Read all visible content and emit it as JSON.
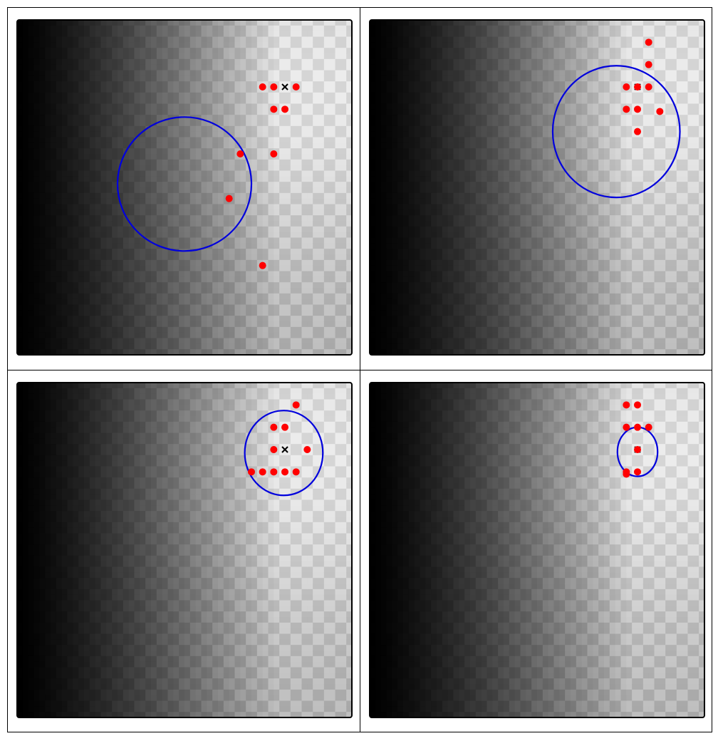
{
  "chart_data": [
    {
      "type": "scatter",
      "title": "",
      "xlim": [
        0,
        30
      ],
      "ylim": [
        0,
        30
      ],
      "grid": false,
      "background": "grayscale-landscape",
      "optimum": {
        "x": 24,
        "y": 24
      },
      "samples": [
        {
          "x": 22,
          "y": 24
        },
        {
          "x": 23,
          "y": 24
        },
        {
          "x": 25,
          "y": 24
        },
        {
          "x": 23,
          "y": 22
        },
        {
          "x": 24,
          "y": 22
        },
        {
          "x": 20,
          "y": 18
        },
        {
          "x": 23,
          "y": 18
        },
        {
          "x": 19,
          "y": 14
        },
        {
          "x": 22,
          "y": 8
        }
      ],
      "ellipse": {
        "cx": 15,
        "cy": 15.3,
        "rx": 6,
        "ry": 6
      }
    },
    {
      "type": "scatter",
      "title": "",
      "xlim": [
        0,
        30
      ],
      "ylim": [
        0,
        30
      ],
      "grid": false,
      "background": "grayscale-landscape",
      "optimum": {
        "x": 24,
        "y": 24
      },
      "samples": [
        {
          "x": 25,
          "y": 28
        },
        {
          "x": 25,
          "y": 26
        },
        {
          "x": 23,
          "y": 24
        },
        {
          "x": 24,
          "y": 24
        },
        {
          "x": 25,
          "y": 24
        },
        {
          "x": 23,
          "y": 22
        },
        {
          "x": 24,
          "y": 22
        },
        {
          "x": 26,
          "y": 21.8
        },
        {
          "x": 24,
          "y": 20
        }
      ],
      "ellipse": {
        "cx": 22.1,
        "cy": 20.0,
        "rx": 5.7,
        "ry": 5.9
      }
    },
    {
      "type": "scatter",
      "title": "",
      "xlim": [
        0,
        30
      ],
      "ylim": [
        0,
        30
      ],
      "grid": false,
      "background": "grayscale-landscape",
      "optimum": {
        "x": 24,
        "y": 24
      },
      "samples": [
        {
          "x": 25,
          "y": 28
        },
        {
          "x": 23,
          "y": 26
        },
        {
          "x": 24,
          "y": 26
        },
        {
          "x": 23,
          "y": 24
        },
        {
          "x": 26,
          "y": 24
        },
        {
          "x": 21,
          "y": 22
        },
        {
          "x": 22,
          "y": 22
        },
        {
          "x": 23,
          "y": 22
        },
        {
          "x": 24,
          "y": 22
        },
        {
          "x": 25,
          "y": 22
        }
      ],
      "ellipse": {
        "cx": 23.9,
        "cy": 23.7,
        "rx": 3.5,
        "ry": 3.8
      }
    },
    {
      "type": "scatter",
      "title": "",
      "xlim": [
        0,
        30
      ],
      "ylim": [
        0,
        30
      ],
      "grid": false,
      "background": "grayscale-landscape",
      "optimum": {
        "x": 24,
        "y": 24
      },
      "samples": [
        {
          "x": 23,
          "y": 28
        },
        {
          "x": 24,
          "y": 28
        },
        {
          "x": 23,
          "y": 26
        },
        {
          "x": 24,
          "y": 26
        },
        {
          "x": 25,
          "y": 26
        },
        {
          "x": 24,
          "y": 24
        },
        {
          "x": 23,
          "y": 22
        },
        {
          "x": 24,
          "y": 22
        },
        {
          "x": 23,
          "y": 21.8
        }
      ],
      "ellipse": {
        "cx": 24.0,
        "cy": 23.8,
        "rx": 1.8,
        "ry": 2.2
      }
    }
  ],
  "colors": {
    "sample": "#ff0000",
    "ellipse": "#0000dd",
    "optimum": "#000000",
    "frame": "#000000"
  },
  "icons": {
    "optimum": "x-marker-icon",
    "sample": "dot-marker-icon"
  }
}
